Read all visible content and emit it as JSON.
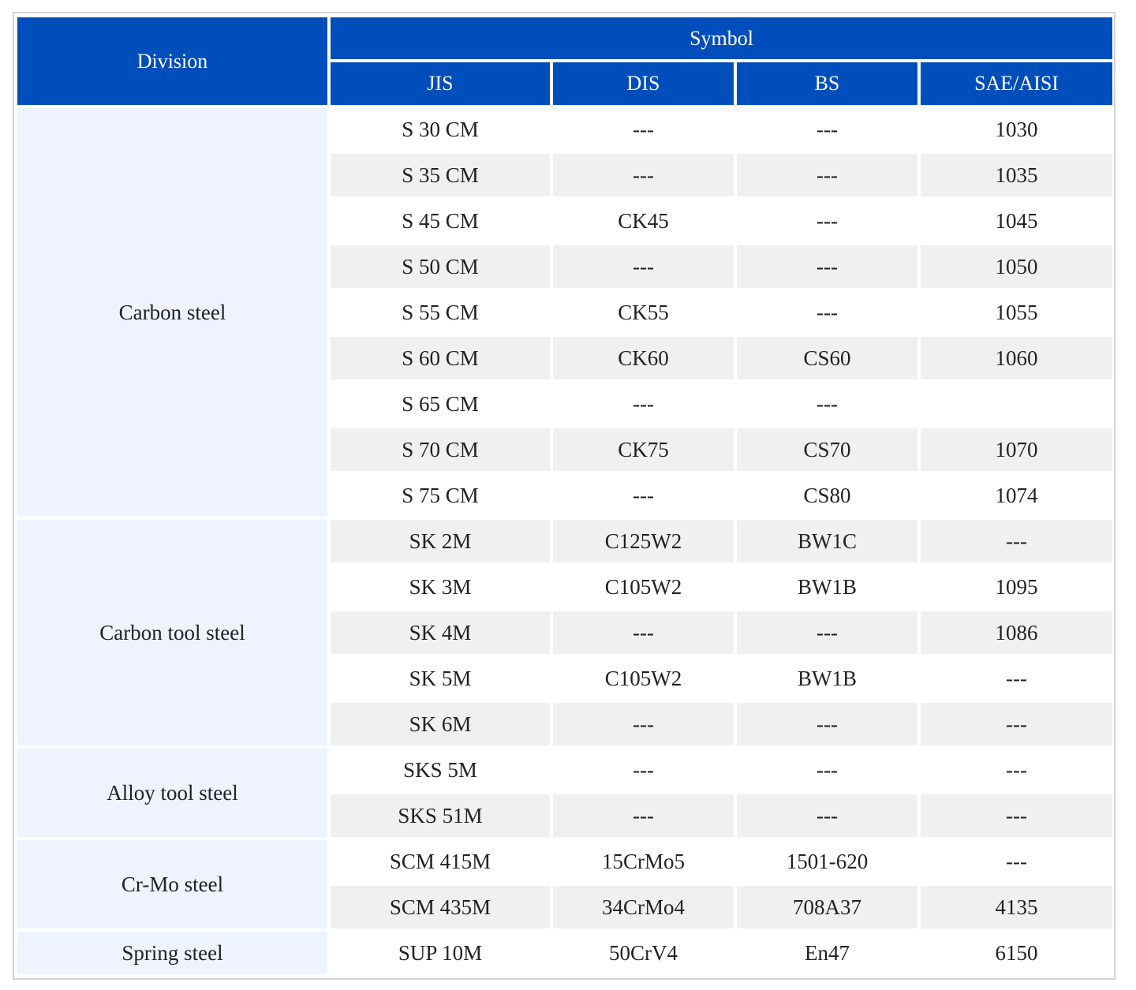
{
  "header": {
    "division": "Division",
    "symbol": "Symbol",
    "columns": [
      "JIS",
      "DIS",
      "BS",
      "SAE/AISI"
    ]
  },
  "groups": [
    {
      "division": "Carbon steel",
      "rows": [
        [
          "S 30 CM",
          "---",
          "---",
          "1030"
        ],
        [
          "S 35 CM",
          "---",
          "---",
          "1035"
        ],
        [
          "S 45 CM",
          "CK45",
          "---",
          "1045"
        ],
        [
          "S 50 CM",
          "---",
          "---",
          "1050"
        ],
        [
          "S 55 CM",
          "CK55",
          "---",
          "1055"
        ],
        [
          "S 60 CM",
          "CK60",
          "CS60",
          "1060"
        ],
        [
          "S 65 CM",
          "---",
          "---",
          ""
        ],
        [
          "S 70 CM",
          "CK75",
          "CS70",
          "1070"
        ],
        [
          "S 75 CM",
          "---",
          "CS80",
          "1074"
        ]
      ]
    },
    {
      "division": "Carbon tool steel",
      "rows": [
        [
          "SK 2M",
          "C125W2",
          "BW1C",
          "---"
        ],
        [
          "SK 3M",
          "C105W2",
          "BW1B",
          "1095"
        ],
        [
          "SK 4M",
          "---",
          "---",
          "1086"
        ],
        [
          "SK 5M",
          "C105W2",
          "BW1B",
          "---"
        ],
        [
          "SK 6M",
          "---",
          "---",
          "---"
        ]
      ]
    },
    {
      "division": "Alloy tool steel",
      "rows": [
        [
          "SKS 5M",
          "---",
          "---",
          "---"
        ],
        [
          "SKS 51M",
          "---",
          "---",
          "---"
        ]
      ]
    },
    {
      "division": "Cr-Mo steel",
      "rows": [
        [
          "SCM 415M",
          "15CrMo5",
          "1501-620",
          "---"
        ],
        [
          "SCM 435M",
          "34CrMo4",
          "708A37",
          "4135"
        ]
      ]
    },
    {
      "division": "Spring steel",
      "rows": [
        [
          "SUP 10M",
          "50CrV4",
          "En47",
          "6150"
        ]
      ]
    }
  ],
  "colors": {
    "header_bg": "#004ebb",
    "header_text": "#ffffff",
    "division_bg": "#eef3ff",
    "row_alt_bg": "#f0f0f0",
    "frame_border": "#d3d3d3"
  }
}
